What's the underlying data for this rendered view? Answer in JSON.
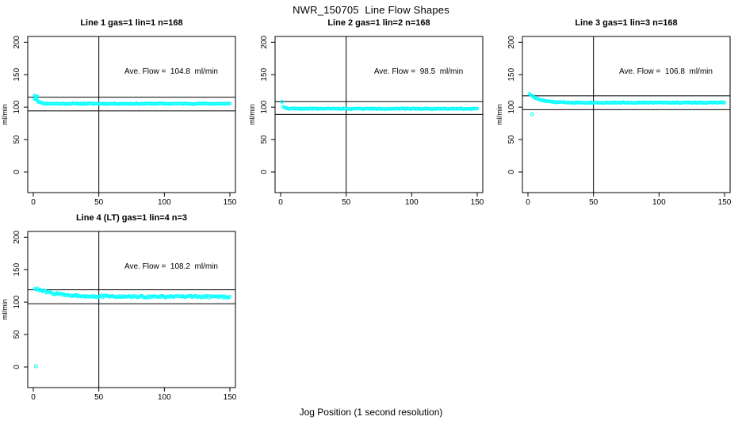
{
  "figure": {
    "title": "NWR_150705  Line Flow Shapes",
    "xlabel": "Jog Position (1 second resolution)",
    "ylabel": "ml/min",
    "point_color": "#00ffff",
    "line_color": "#000000",
    "marker": "open-circle"
  },
  "chart_data": [
    {
      "type": "scatter",
      "title": "Line 1 gas=1 lin=1 n=168",
      "annotation": "Ave. Flow =  104.8  ml/min",
      "ave_flow_ml_min": 104.8,
      "xlim": [
        0,
        150
      ],
      "ylim": [
        0,
        200
      ],
      "xticks": [
        0,
        50,
        100,
        150
      ],
      "yticks": [
        0,
        50,
        100,
        150,
        200
      ],
      "ylabel": "ml/min",
      "vline_x": 50,
      "hlines": [
        115.3,
        94.3
      ],
      "series": {
        "x_start": 1,
        "x_end": 150,
        "initial": 118.3,
        "settle": 105.3,
        "tau": 2.2,
        "noise": 0.7,
        "seed": 11
      },
      "extra_points": [
        [
          1,
          112.5
        ],
        [
          2,
          116.5
        ],
        [
          2,
          112
        ],
        [
          3,
          116
        ]
      ]
    },
    {
      "type": "scatter",
      "title": "Line 2 gas=1 lin=2 n=168",
      "annotation": "Ave. Flow =  98.5  ml/min",
      "ave_flow_ml_min": 98.5,
      "xlim": [
        0,
        150
      ],
      "ylim": [
        0,
        200
      ],
      "xticks": [
        0,
        50,
        100,
        150
      ],
      "yticks": [
        0,
        50,
        100,
        150,
        200
      ],
      "ylabel": "ml/min",
      "vline_x": 50,
      "hlines": [
        108.4,
        88.7
      ],
      "series": {
        "x_start": 2,
        "x_end": 150,
        "initial": 101.1,
        "settle": 97.6,
        "tau": 1.5,
        "noise": 0.55,
        "seed": 22
      },
      "extra_points": [
        [
          1,
          108.3
        ]
      ]
    },
    {
      "type": "scatter",
      "title": "Line 3 gas=1 lin=3 n=168",
      "annotation": "Ave. Flow =  106.8  ml/min",
      "ave_flow_ml_min": 106.8,
      "xlim": [
        0,
        150
      ],
      "ylim": [
        0,
        200
      ],
      "xticks": [
        0,
        50,
        100,
        150
      ],
      "yticks": [
        0,
        50,
        100,
        150,
        200
      ],
      "ylabel": "ml/min",
      "vline_x": 50,
      "hlines": [
        117.5,
        96.1
      ],
      "series": {
        "x_start": 1,
        "x_end": 150,
        "initial": 121,
        "settle": 107,
        "tau": 7,
        "noise": 0.7,
        "seed": 33
      },
      "extra_points": [
        [
          3,
          89
        ]
      ]
    },
    {
      "type": "scatter",
      "title": "Line 4 (LT) gas=1 lin=4 n=3",
      "annotation": "Ave. Flow =  108.2  ml/min",
      "ave_flow_ml_min": 108.2,
      "xlim": [
        0,
        150
      ],
      "ylim": [
        0,
        200
      ],
      "xticks": [
        0,
        50,
        100,
        150
      ],
      "yticks": [
        0,
        50,
        100,
        150,
        200
      ],
      "ylabel": "ml/min",
      "vline_x": 50,
      "hlines": [
        119.0,
        97.4
      ],
      "series": {
        "x_start": 1,
        "x_end": 150,
        "initial": 121.3,
        "settle": 108.3,
        "tau": 16,
        "noise": 1.6,
        "seed": 44
      },
      "extra_points": [
        [
          2,
          1
        ]
      ]
    }
  ]
}
